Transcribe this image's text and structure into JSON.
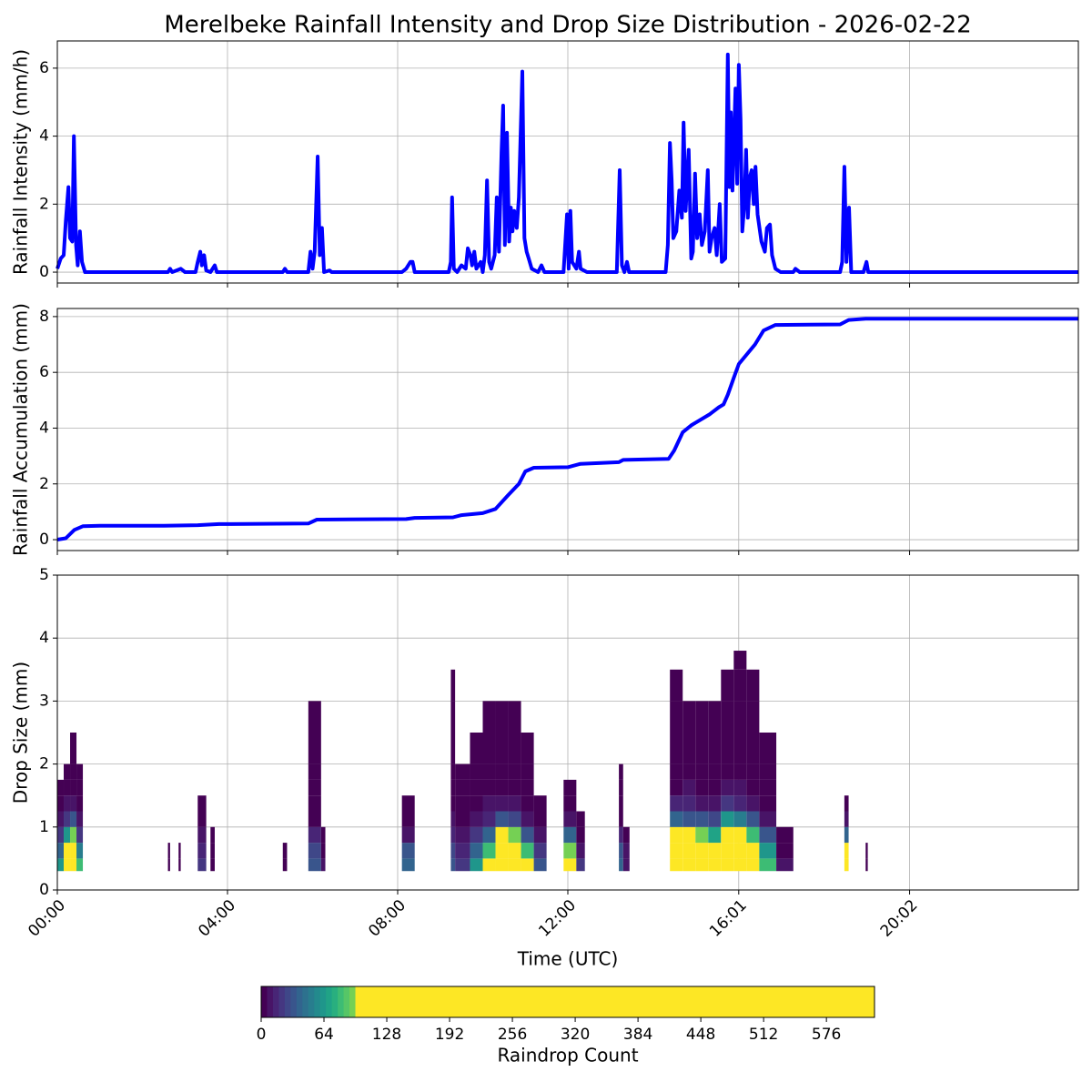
{
  "title": "Merelbeke Rainfall Intensity and Drop Size Distribution - 2026-02-22",
  "chart_data": [
    {
      "type": "line",
      "ylabel": "Rainfall Intensity (mm/h)",
      "color": "#0000ff",
      "grid": true,
      "ylim": [
        -0.32,
        6.8
      ],
      "yticks": [
        0,
        2,
        4,
        6
      ],
      "x": [
        0,
        0.08,
        0.15,
        0.2,
        0.26,
        0.3,
        0.35,
        0.39,
        0.44,
        0.48,
        0.53,
        0.58,
        0.65,
        2.6,
        2.65,
        2.7,
        2.8,
        2.9,
        3.0,
        3.25,
        3.3,
        3.36,
        3.4,
        3.45,
        3.5,
        3.6,
        3.7,
        3.75,
        5.3,
        5.35,
        5.4,
        5.9,
        5.95,
        6.0,
        6.05,
        6.12,
        6.17,
        6.22,
        6.27,
        6.4,
        6.45,
        8.1,
        8.2,
        8.3,
        8.35,
        8.4,
        9.2,
        9.25,
        9.28,
        9.32,
        9.4,
        9.5,
        9.6,
        9.65,
        9.71,
        9.75,
        9.8,
        9.85,
        9.95,
        10.0,
        10.05,
        10.1,
        10.15,
        10.2,
        10.28,
        10.33,
        10.38,
        10.44,
        10.48,
        10.52,
        10.57,
        10.62,
        10.66,
        10.7,
        10.74,
        10.8,
        10.85,
        10.93,
        10.98,
        11.03,
        11.08,
        11.15,
        11.3,
        11.38,
        11.45,
        11.9,
        11.98,
        12.02,
        12.06,
        12.1,
        12.2,
        12.26,
        12.3,
        12.45,
        13.15,
        13.22,
        13.27,
        13.33,
        13.39,
        13.44,
        14.3,
        14.35,
        14.4,
        14.44,
        14.48,
        14.55,
        14.62,
        14.68,
        14.72,
        14.77,
        14.84,
        14.9,
        14.94,
        14.99,
        15.04,
        15.1,
        15.15,
        15.22,
        15.29,
        15.33,
        15.38,
        15.45,
        15.5,
        15.57,
        15.62,
        15.7,
        15.76,
        15.8,
        15.83,
        15.87,
        15.94,
        15.98,
        16.02,
        16.06,
        16.1,
        16.15,
        16.19,
        16.23,
        16.28,
        16.32,
        16.37,
        16.41,
        16.46,
        16.55,
        16.63,
        16.68,
        16.75,
        16.8,
        16.88,
        17.0,
        17.3,
        17.35,
        17.45,
        18.4,
        18.45,
        18.5,
        18.55,
        18.61,
        18.66,
        18.95,
        19.02,
        19.06,
        24
      ],
      "values": [
        0.1,
        0.4,
        0.5,
        1.5,
        2.5,
        1.0,
        0.9,
        4.0,
        0.8,
        0.2,
        1.2,
        0.3,
        0,
        0,
        0.1,
        0,
        0.05,
        0.1,
        0,
        0,
        0.3,
        0.6,
        0.2,
        0.5,
        0.05,
        0,
        0.2,
        0,
        0,
        0.1,
        0,
        0,
        0.6,
        0.1,
        0.6,
        3.4,
        0.5,
        1.3,
        0,
        0.05,
        0,
        0,
        0.1,
        0.3,
        0.3,
        0,
        0,
        0.3,
        2.2,
        0.1,
        0,
        0.2,
        0.1,
        0.7,
        0.5,
        0.2,
        0.6,
        0.1,
        0.3,
        0,
        0.5,
        2.7,
        0.3,
        0.1,
        0.5,
        2.2,
        0.6,
        3.5,
        4.9,
        0.8,
        4.1,
        0.9,
        1.9,
        1.2,
        1.8,
        1.3,
        2.2,
        5.9,
        1.0,
        0.6,
        0.4,
        0.1,
        0,
        0.2,
        0,
        0,
        1.7,
        0.1,
        1.8,
        0.3,
        0.1,
        0.6,
        0.1,
        0,
        0,
        3.0,
        0.2,
        0,
        0.3,
        0,
        0,
        0.8,
        3.8,
        2.7,
        1.0,
        1.2,
        2.4,
        1.6,
        4.4,
        1.8,
        3.6,
        0.4,
        0.6,
        2.9,
        1.0,
        1.7,
        0.8,
        1.2,
        3.0,
        0.6,
        1.0,
        1.3,
        0.5,
        2.0,
        0.3,
        0.4,
        6.4,
        2.5,
        4.7,
        2.4,
        5.4,
        2.6,
        6.1,
        4.5,
        1.2,
        2.0,
        3.6,
        1.6,
        2.8,
        3.0,
        2.0,
        3.1,
        1.7,
        0.9,
        0.6,
        1.3,
        1.4,
        0.5,
        0.1,
        0,
        0,
        0.1,
        0,
        0,
        0.3,
        3.1,
        0.3,
        1.9,
        0,
        0,
        0.3,
        0,
        0
      ]
    },
    {
      "type": "line",
      "ylabel": "Rainfall Accumulation (mm)",
      "color": "#0000ff",
      "grid": true,
      "ylim": [
        -0.39,
        8.29
      ],
      "yticks": [
        0,
        2,
        4,
        6,
        8
      ],
      "x": [
        0,
        0.2,
        0.4,
        0.6,
        1,
        2.5,
        3.3,
        3.8,
        5.9,
        6.1,
        8.2,
        8.4,
        9.3,
        9.5,
        10.0,
        10.3,
        10.6,
        10.85,
        11.0,
        11.2,
        12.0,
        12.3,
        13.2,
        13.3,
        14.37,
        14.5,
        14.7,
        14.9,
        15.34,
        15.55,
        15.66,
        15.76,
        15.9,
        16.02,
        16.4,
        16.6,
        16.88,
        18.4,
        18.6,
        19.0,
        24
      ],
      "values": [
        0,
        0.05,
        0.35,
        0.48,
        0.5,
        0.5,
        0.52,
        0.56,
        0.58,
        0.72,
        0.74,
        0.78,
        0.8,
        0.88,
        0.95,
        1.1,
        1.6,
        2.0,
        2.45,
        2.58,
        2.6,
        2.72,
        2.78,
        2.86,
        2.9,
        3.2,
        3.85,
        4.1,
        4.5,
        4.75,
        4.85,
        5.2,
        5.8,
        6.3,
        7.0,
        7.5,
        7.7,
        7.72,
        7.88,
        7.92,
        7.92
      ]
    },
    {
      "type": "heatmap",
      "ylabel": "Drop Size (mm)",
      "xlabel": "Time (UTC)",
      "grid": true,
      "xlim": [
        0,
        24
      ],
      "xticks": [
        {
          "value": 0,
          "label": "00:00"
        },
        {
          "value": 4,
          "label": "04:00"
        },
        {
          "value": 8,
          "label": "08:00"
        },
        {
          "value": 12,
          "label": "12:00"
        },
        {
          "value": 16.017,
          "label": "16:01"
        },
        {
          "value": 20.033,
          "label": "20:02"
        }
      ],
      "ylim": [
        0,
        5
      ],
      "yticks": [
        0,
        1,
        2,
        3,
        4,
        5
      ],
      "size_edges": [
        0.3,
        0.5,
        0.75,
        1.0,
        1.25,
        1.5,
        1.75,
        2.0,
        2.5,
        3.0,
        3.5,
        3.8
      ],
      "columns": [
        {
          "start": 0.0,
          "end": 0.15,
          "counts": [
            60,
            40,
            20,
            8,
            3,
            1,
            null,
            null,
            null,
            null,
            null
          ]
        },
        {
          "start": 0.15,
          "end": 0.3,
          "counts": [
            150,
            120,
            60,
            20,
            6,
            2,
            1,
            null,
            null,
            null,
            null
          ]
        },
        {
          "start": 0.3,
          "end": 0.45,
          "counts": [
            200,
            160,
            90,
            30,
            10,
            4,
            2,
            1,
            null,
            null,
            null
          ]
        },
        {
          "start": 0.45,
          "end": 0.6,
          "counts": [
            80,
            50,
            20,
            6,
            2,
            1,
            1,
            null,
            null,
            null,
            null
          ]
        },
        {
          "start": 2.6,
          "end": 2.65,
          "counts": [
            2,
            1,
            null,
            null,
            null,
            null,
            null,
            null,
            null,
            null,
            null
          ]
        },
        {
          "start": 2.85,
          "end": 2.9,
          "counts": [
            2,
            1,
            null,
            null,
            null,
            null,
            null,
            null,
            null,
            null,
            null
          ]
        },
        {
          "start": 3.3,
          "end": 3.5,
          "counts": [
            20,
            15,
            6,
            3,
            1,
            null,
            null,
            null,
            null,
            null,
            null
          ]
        },
        {
          "start": 3.6,
          "end": 3.7,
          "counts": [
            5,
            3,
            1,
            null,
            null,
            null,
            null,
            null,
            null,
            null,
            null
          ]
        },
        {
          "start": 5.3,
          "end": 5.4,
          "counts": [
            4,
            2,
            null,
            null,
            null,
            null,
            null,
            null,
            null,
            null,
            null
          ]
        },
        {
          "start": 5.9,
          "end": 6.2,
          "counts": [
            30,
            25,
            12,
            5,
            3,
            2,
            1,
            1,
            1,
            null,
            null
          ]
        },
        {
          "start": 6.2,
          "end": 6.3,
          "counts": [
            6,
            4,
            2,
            null,
            null,
            null,
            null,
            null,
            null,
            null,
            null
          ]
        },
        {
          "start": 8.1,
          "end": 8.4,
          "counts": [
            40,
            30,
            10,
            3,
            1,
            null,
            null,
            null,
            null,
            null,
            null
          ]
        },
        {
          "start": 9.25,
          "end": 9.35,
          "counts": [
            30,
            25,
            12,
            6,
            3,
            2,
            1,
            1,
            1,
            1,
            null
          ]
        },
        {
          "start": 9.35,
          "end": 9.7,
          "counts": [
            20,
            15,
            6,
            3,
            1,
            1,
            1,
            null,
            null,
            null,
            null
          ]
        },
        {
          "start": 9.7,
          "end": 10.0,
          "counts": [
            60,
            40,
            20,
            6,
            3,
            2,
            1,
            1,
            null,
            null,
            null
          ]
        },
        {
          "start": 10.0,
          "end": 10.3,
          "counts": [
            120,
            80,
            40,
            12,
            6,
            3,
            2,
            1,
            1,
            null,
            null
          ]
        },
        {
          "start": 10.3,
          "end": 10.6,
          "counts": [
            250,
            200,
            110,
            30,
            10,
            5,
            2,
            1,
            1,
            null,
            null
          ]
        },
        {
          "start": 10.6,
          "end": 10.9,
          "counts": [
            200,
            150,
            90,
            25,
            8,
            4,
            2,
            1,
            1,
            null,
            null
          ]
        },
        {
          "start": 10.9,
          "end": 11.2,
          "counts": [
            120,
            80,
            30,
            10,
            4,
            2,
            1,
            1,
            null,
            null,
            null
          ]
        },
        {
          "start": 11.2,
          "end": 11.5,
          "counts": [
            30,
            20,
            6,
            2,
            1,
            null,
            null,
            null,
            null,
            null,
            null
          ]
        },
        {
          "start": 11.9,
          "end": 12.2,
          "counts": [
            150,
            90,
            40,
            8,
            3,
            1,
            null,
            null,
            null,
            null,
            null
          ]
        },
        {
          "start": 12.2,
          "end": 12.4,
          "counts": [
            20,
            10,
            3,
            1,
            null,
            null,
            null,
            null,
            null,
            null,
            null
          ]
        },
        {
          "start": 13.2,
          "end": 13.3,
          "counts": [
            40,
            30,
            15,
            5,
            2,
            1,
            1,
            null,
            null,
            null,
            null
          ]
        },
        {
          "start": 13.3,
          "end": 13.45,
          "counts": [
            10,
            6,
            2,
            null,
            null,
            null,
            null,
            null,
            null,
            null,
            null
          ]
        },
        {
          "start": 14.4,
          "end": 14.7,
          "counts": [
            300,
            250,
            120,
            40,
            12,
            5,
            3,
            2,
            1,
            1,
            null
          ]
        },
        {
          "start": 14.7,
          "end": 15.0,
          "counts": [
            250,
            200,
            110,
            35,
            12,
            6,
            3,
            2,
            1,
            null,
            null
          ]
        },
        {
          "start": 15.0,
          "end": 15.3,
          "counts": [
            200,
            150,
            90,
            30,
            10,
            5,
            3,
            2,
            1,
            null,
            null
          ]
        },
        {
          "start": 15.3,
          "end": 15.6,
          "counts": [
            150,
            120,
            70,
            25,
            8,
            4,
            2,
            1,
            1,
            null,
            null
          ]
        },
        {
          "start": 15.6,
          "end": 15.9,
          "counts": [
            350,
            300,
            160,
            60,
            20,
            8,
            4,
            3,
            2,
            1,
            null
          ]
        },
        {
          "start": 15.9,
          "end": 16.2,
          "counts": [
            300,
            250,
            130,
            50,
            15,
            7,
            4,
            3,
            2,
            1,
            1
          ]
        },
        {
          "start": 16.2,
          "end": 16.5,
          "counts": [
            180,
            140,
            80,
            30,
            10,
            5,
            3,
            2,
            1,
            1,
            null
          ]
        },
        {
          "start": 16.5,
          "end": 16.9,
          "counts": [
            80,
            60,
            30,
            10,
            4,
            2,
            1,
            1,
            null,
            null,
            null
          ]
        },
        {
          "start": 16.9,
          "end": 17.3,
          "counts": [
            6,
            4,
            2,
            null,
            null,
            null,
            null,
            null,
            null,
            null,
            null
          ]
        },
        {
          "start": 18.5,
          "end": 18.6,
          "counts": [
            150,
            100,
            40,
            6,
            2,
            null,
            null,
            null,
            null,
            null,
            null
          ]
        },
        {
          "start": 19.0,
          "end": 19.05,
          "counts": [
            2,
            1,
            null,
            null,
            null,
            null,
            null,
            null,
            null,
            null,
            null
          ]
        }
      ],
      "colorbar": {
        "label": "Raindrop Count",
        "levels": [
          0,
          6,
          12,
          18,
          24,
          30,
          36,
          42,
          48,
          54,
          60,
          66,
          72,
          78,
          84,
          90,
          96,
          625
        ],
        "colors": [
          "#440154",
          "#481467",
          "#482576",
          "#453781",
          "#3f4788",
          "#39558c",
          "#32648e",
          "#2d718e",
          "#287d8e",
          "#238a8d",
          "#1f968b",
          "#20a386",
          "#29af7f",
          "#3dbc74",
          "#56c667",
          "#75d054",
          "#fde725"
        ],
        "ticks": [
          0,
          64,
          128,
          192,
          256,
          320,
          384,
          448,
          512,
          576
        ]
      }
    }
  ]
}
